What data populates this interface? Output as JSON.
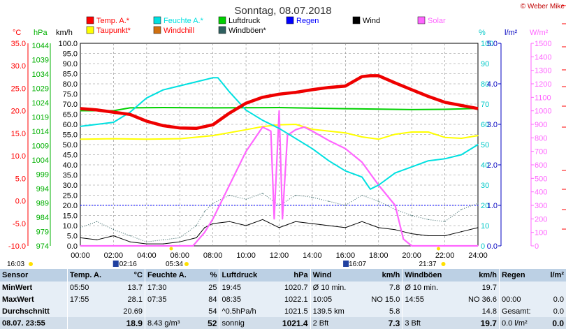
{
  "title": "Sonntag, 08.07.2018",
  "copyright": "© Weber Mike",
  "legend": [
    {
      "label": "Temp. A.*",
      "color": "#ff0000",
      "text_color": "#ff0000"
    },
    {
      "label": "Feuchte A.*",
      "color": "#00e0e0",
      "text_color": "#00e0e0"
    },
    {
      "label": "Luftdruck",
      "color": "#00d000",
      "text_color": "#000000"
    },
    {
      "label": "Regen",
      "color": "#0000ff",
      "text_color": "#0000ff"
    },
    {
      "label": "Wind",
      "color": "#000000",
      "text_color": "#000000"
    },
    {
      "label": "Solar",
      "color": "#ff66ff",
      "text_color": "#ff66ff"
    },
    {
      "label": "Taupunkt*",
      "color": "#ffff00",
      "text_color": "#ff0000"
    },
    {
      "label": "Windchill",
      "color": "#d07010",
      "text_color": "#ff0000"
    },
    {
      "label": "Windböen*",
      "color": "#2f6060",
      "text_color": "#000000"
    }
  ],
  "axes": {
    "temp": {
      "unit": "°C",
      "color": "#ff0000",
      "ticks": [
        "35.0",
        "30.0",
        "25.0",
        "20.0",
        "15.0",
        "10.0",
        "5.0",
        "0.0",
        "-5.0",
        "-10.0"
      ]
    },
    "pressure": {
      "unit": "hPa",
      "color": "#00b000",
      "ticks": [
        "1044",
        "1039",
        "1034",
        "1029",
        "1024",
        "1019",
        "1014",
        "1009",
        "1004",
        "999",
        "994",
        "989",
        "984",
        "979",
        "974"
      ]
    },
    "wind": {
      "unit": "km/h",
      "color": "#000000",
      "ticks": [
        "100.0",
        "95.0",
        "90.0",
        "85.0",
        "80.0",
        "75.0",
        "70.0",
        "65.0",
        "60.0",
        "55.0",
        "50.0",
        "45.0",
        "40.0",
        "35.0",
        "30.0",
        "25.0",
        "20.0",
        "15.0",
        "10.0",
        "5.0",
        "0.0"
      ]
    },
    "humidity": {
      "unit": "%",
      "color": "#00c8c8",
      "ticks": [
        "100",
        "90",
        "80",
        "70",
        "60",
        "50",
        "40",
        "30",
        "20",
        "10",
        "0"
      ]
    },
    "rain": {
      "unit": "l/m²",
      "color": "#0000c0",
      "ticks": [
        "5.0",
        "4.0",
        "3.0",
        "2.0",
        "1.0",
        "0.0"
      ]
    },
    "solar": {
      "unit": "W/m²",
      "color": "#ff66ff",
      "ticks": [
        "1500",
        "1400",
        "1300",
        "1200",
        "1100",
        "1000",
        "900",
        "800",
        "700",
        "600",
        "500",
        "400",
        "300",
        "200",
        "100",
        "0"
      ]
    },
    "time_ticks": [
      "00:00",
      "02:00",
      "04:00",
      "06:00",
      "08:00",
      "10:00",
      "12:00",
      "14:00",
      "16:00",
      "18:00",
      "20:00",
      "22:00",
      "24:00"
    ]
  },
  "markers": {
    "sun_rise": "05:34",
    "sun_set": "21:37",
    "moon_set": "02:16",
    "moon_rise": "16:07",
    "sunrise_label": "16:03"
  },
  "chart_data": {
    "type": "line",
    "title": "Sonntag, 08.07.2018",
    "x_unit": "hours",
    "series": [
      {
        "name": "Temp. A.*",
        "axis": "temp",
        "x": [
          0,
          1,
          2,
          3,
          4,
          5,
          6,
          7,
          8,
          9,
          10,
          11,
          12,
          13,
          14,
          15,
          16,
          17,
          17.5,
          18,
          19,
          20,
          21,
          22,
          23,
          24
        ],
        "values": [
          20.5,
          20.2,
          19.7,
          19.2,
          17.7,
          16.7,
          16.2,
          16.1,
          16.9,
          19.5,
          21.7,
          23.0,
          23.7,
          24.1,
          24.7,
          25.2,
          25.5,
          27.6,
          27.8,
          27.8,
          26.2,
          24.7,
          23.2,
          21.9,
          21.2,
          20.5
        ]
      },
      {
        "name": "Feuchte A.*",
        "axis": "humidity",
        "x": [
          0,
          1,
          2,
          3,
          4,
          5,
          6,
          7,
          8,
          8.3,
          9,
          10,
          11,
          12,
          13,
          14,
          15,
          16,
          17,
          17.5,
          18,
          19,
          20,
          21,
          22,
          23,
          24
        ],
        "values": [
          59,
          60,
          61,
          66,
          73,
          77,
          79,
          81,
          83,
          83,
          76,
          67,
          62,
          58,
          53,
          48,
          42,
          37,
          34,
          28,
          30,
          36,
          39,
          42,
          43,
          45,
          50
        ]
      },
      {
        "name": "Luftdruck",
        "axis": "pressure",
        "x": [
          0,
          2,
          3,
          5,
          8,
          12,
          16,
          20,
          22,
          24
        ],
        "values": [
          1020.7,
          1020.7,
          1021.7,
          1021.8,
          1021.7,
          1021.8,
          1021.4,
          1021.1,
          1021.2,
          1021.5
        ]
      },
      {
        "name": "Taupunkt*",
        "axis": "temp",
        "x": [
          0,
          2,
          4,
          6,
          8,
          10,
          11,
          12,
          13,
          14,
          16,
          17,
          18,
          19,
          20,
          21,
          22,
          23,
          24
        ],
        "values": [
          13.7,
          13.8,
          13.7,
          13.8,
          14.5,
          15.8,
          16.5,
          16.9,
          17.0,
          15.9,
          15.1,
          14.2,
          13.7,
          14.8,
          15.3,
          15.3,
          14.1,
          13.9,
          14.5
        ]
      },
      {
        "name": "Solar",
        "axis": "solar",
        "x": [
          0,
          6.8,
          7.5,
          8,
          9,
          10,
          11,
          11.5,
          11.7,
          12,
          12.2,
          12.5,
          13,
          13.5,
          14,
          15,
          16,
          17,
          18,
          19,
          19.5,
          20,
          21,
          22,
          24
        ],
        "values": [
          0,
          0,
          100,
          200,
          450,
          700,
          880,
          850,
          200,
          1000,
          200,
          820,
          860,
          880,
          850,
          780,
          720,
          620,
          450,
          300,
          50,
          0,
          0,
          0,
          0
        ]
      },
      {
        "name": "Wind",
        "axis": "wind",
        "x": [
          0,
          1,
          2,
          3,
          4,
          5,
          6,
          7,
          7.5,
          8,
          9,
          10,
          11,
          12,
          13,
          14,
          15,
          16,
          17,
          18,
          19,
          20,
          21,
          22,
          23,
          24
        ],
        "values": [
          4,
          3,
          5,
          2,
          1,
          1,
          2,
          4,
          9,
          11,
          12,
          10,
          13,
          9,
          12,
          11,
          10,
          9,
          12,
          9,
          8,
          6,
          5,
          5,
          7,
          9
        ]
      },
      {
        "name": "Windböen*",
        "axis": "wind",
        "x": [
          0,
          1,
          2,
          3,
          4,
          5,
          6,
          7,
          7.5,
          8,
          9,
          10,
          11,
          12,
          13,
          14,
          15,
          16,
          17,
          18,
          19,
          20,
          21,
          22,
          23,
          24
        ],
        "values": [
          9,
          12,
          8,
          5,
          2,
          3,
          4,
          10,
          17,
          21,
          25,
          23,
          26,
          20,
          25,
          24,
          22,
          20,
          25,
          22,
          18,
          15,
          13,
          12,
          18,
          21
        ]
      },
      {
        "name": "Regen",
        "axis": "rain",
        "x": [
          0,
          24
        ],
        "values": [
          1.0,
          1.0
        ]
      }
    ]
  },
  "stats": {
    "headers": [
      "Sensor",
      "Temp. A.",
      "°C",
      "Feuchte A.",
      "%",
      "Luftdruck",
      "hPa",
      "Wind",
      "km/h",
      "Windböen",
      "km/h",
      "Regen",
      "l/m²"
    ],
    "rows": [
      [
        "MinWert",
        "05:50",
        "13.7",
        "17:30",
        "25",
        "19:45",
        "1020.7",
        "Ø 10 min.",
        "7.8",
        "Ø 10 min.",
        "19.7",
        "",
        ""
      ],
      [
        "MaxWert",
        "17:55",
        "28.1",
        "07:35",
        "84",
        "08:35",
        "1022.1",
        "10:05",
        "NO 15.0",
        "14:55",
        "NO 36.6",
        "00:00",
        "0.0"
      ],
      [
        "Durchschnitt",
        "",
        "20.69",
        "",
        "54",
        "^0.5hPa/h",
        "1021.5",
        "139.5 km",
        "5.8",
        "",
        "14.8",
        "Gesamt:",
        "0.0"
      ],
      [
        "08.07.  23:55",
        "",
        "18.9",
        "8.43 g/m³",
        "52",
        "sonnig",
        "1021.4",
        "2 Bft",
        "7.3",
        "3 Bft",
        "19.7",
        "0.0 l/m²",
        "0.0"
      ]
    ]
  }
}
